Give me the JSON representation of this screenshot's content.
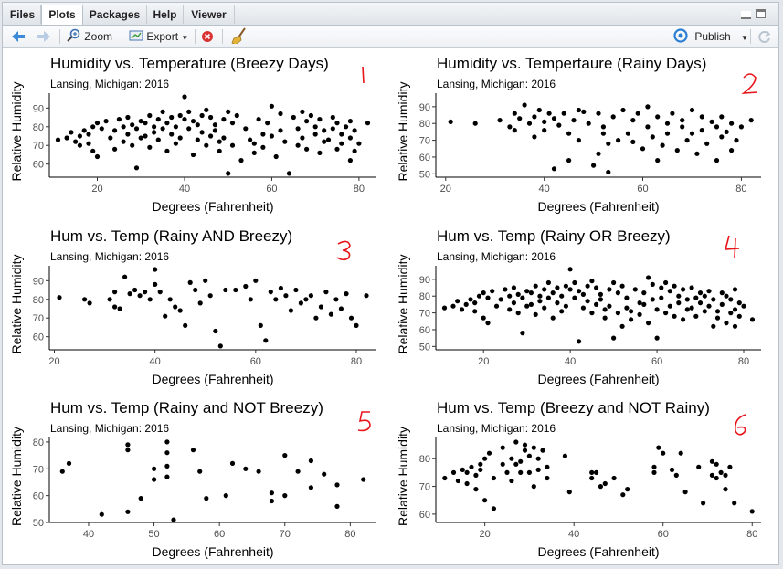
{
  "tabs": [
    "Files",
    "Plots",
    "Packages",
    "Help",
    "Viewer"
  ],
  "active_tab": "Plots",
  "toolbar": {
    "zoom": "Zoom",
    "export": "Export",
    "publish": "Publish"
  },
  "colors": {
    "accent": "#2a7fd4",
    "annotation": "#e8151b",
    "point": "#000000"
  },
  "icons": [
    "back-arrow-icon",
    "forward-arrow-icon",
    "zoom-icon",
    "export-icon",
    "remove-plot-icon",
    "broom-icon",
    "publish-icon",
    "refresh-icon"
  ],
  "annotations": [
    "1",
    "2",
    "3",
    "4",
    "5",
    "6"
  ],
  "chart_data": [
    {
      "type": "scatter",
      "title": "Humidity vs. Temperature (Breezy Days)",
      "subtitle": "Lansing, Michigan: 2016",
      "xlabel": "Degrees (Fahrenheit)",
      "ylabel": "Relative Humidity",
      "xlim": [
        9,
        84
      ],
      "ylim": [
        53,
        97
      ],
      "xticks": [
        20,
        40,
        60,
        80
      ],
      "yticks": [
        60,
        70,
        80,
        90
      ],
      "x": [
        11,
        13,
        14,
        15,
        16,
        16,
        17,
        18,
        18,
        19,
        19,
        20,
        20,
        21,
        22,
        23,
        24,
        24,
        25,
        26,
        26,
        27,
        27,
        28,
        28,
        29,
        29,
        30,
        30,
        31,
        31,
        32,
        32,
        33,
        33,
        34,
        34,
        35,
        35,
        36,
        36,
        37,
        37,
        38,
        38,
        39,
        39,
        40,
        40,
        41,
        41,
        42,
        42,
        43,
        43,
        44,
        44,
        45,
        45,
        46,
        46,
        47,
        47,
        48,
        48,
        49,
        49,
        50,
        50,
        51,
        51,
        52,
        53,
        54,
        55,
        56,
        56,
        57,
        58,
        58,
        59,
        60,
        60,
        61,
        62,
        62,
        63,
        64,
        65,
        66,
        66,
        67,
        67,
        68,
        68,
        69,
        70,
        70,
        71,
        71,
        72,
        72,
        73,
        74,
        74,
        75,
        75,
        76,
        76,
        77,
        78,
        78,
        78,
        79,
        79,
        80,
        82
      ],
      "y": [
        73,
        74,
        77,
        72,
        75,
        70,
        78,
        76,
        71,
        80,
        67,
        82,
        64,
        79,
        83,
        74,
        78,
        68,
        84,
        80,
        72,
        85,
        76,
        81,
        70,
        79,
        58,
        83,
        74,
        82,
        75,
        86,
        69,
        80,
        77,
        84,
        73,
        88,
        79,
        67,
        82,
        85,
        76,
        80,
        71,
        86,
        74,
        84,
        96,
        88,
        79,
        83,
        65,
        81,
        73,
        86,
        77,
        89,
        70,
        85,
        75,
        81,
        78,
        72,
        67,
        84,
        74,
        88,
        55,
        82,
        70,
        86,
        62,
        79,
        73,
        71,
        66,
        84,
        76,
        69,
        82,
        75,
        91,
        64,
        87,
        78,
        72,
        55,
        85,
        79,
        70,
        88,
        74,
        83,
        68,
        86,
        76,
        80,
        66,
        84,
        72,
        78,
        73,
        85,
        79,
        68,
        82,
        76,
        71,
        80,
        74,
        83,
        62,
        78,
        67,
        71,
        82
      ]
    },
    {
      "type": "scatter",
      "title": "Humidity vs. Tempertaure (Rainy Days)",
      "subtitle": "Lansing, Michigan: 2016",
      "xlabel": "Degrees (Fahrenheit)",
      "ylabel": "Relative Humidity",
      "xlim": [
        18,
        84
      ],
      "ylim": [
        48,
        97
      ],
      "xticks": [
        20,
        40,
        60,
        80
      ],
      "yticks": [
        50,
        60,
        70,
        80,
        90
      ],
      "x": [
        21,
        26,
        31,
        33,
        34,
        34,
        35,
        36,
        37,
        38,
        38,
        39,
        40,
        40,
        41,
        42,
        42,
        43,
        44,
        45,
        45,
        46,
        47,
        47,
        48,
        49,
        50,
        51,
        51,
        52,
        52,
        53,
        53,
        54,
        55,
        56,
        57,
        58,
        58,
        59,
        60,
        61,
        61,
        62,
        63,
        63,
        64,
        65,
        65,
        66,
        67,
        68,
        68,
        69,
        70,
        70,
        71,
        72,
        72,
        73,
        74,
        75,
        75,
        76,
        76,
        77,
        78,
        78,
        79,
        80,
        82
      ],
      "y": [
        81,
        80,
        82,
        78,
        86,
        76,
        83,
        91,
        80,
        84,
        72,
        88,
        81,
        76,
        86,
        83,
        53,
        79,
        86,
        58,
        74,
        82,
        88,
        70,
        87,
        80,
        55,
        86,
        62,
        74,
        78,
        68,
        51,
        84,
        70,
        88,
        74,
        82,
        69,
        86,
        65,
        78,
        90,
        72,
        84,
        58,
        67,
        80,
        74,
        86,
        64,
        78,
        82,
        70,
        88,
        74,
        62,
        84,
        76,
        68,
        81,
        78,
        58,
        84,
        72,
        75,
        80,
        64,
        70,
        78,
        82
      ]
    },
    {
      "type": "scatter",
      "title": "Hum vs. Temp (Rainy AND Breezy)",
      "subtitle": "Lansing, Michigan: 2016",
      "xlabel": "Degrees (Fahrenheit)",
      "ylabel": "Relative Humidity",
      "xlim": [
        19,
        84
      ],
      "ylim": [
        53,
        97
      ],
      "xticks": [
        20,
        40,
        60,
        80
      ],
      "yticks": [
        60,
        70,
        80,
        90
      ],
      "x": [
        21,
        26,
        27,
        31,
        32,
        32,
        33,
        34,
        35,
        36,
        37,
        38,
        39,
        40,
        40,
        41,
        42,
        43,
        44,
        45,
        46,
        47,
        48,
        49,
        50,
        51,
        52,
        53,
        54,
        56,
        58,
        59,
        60,
        61,
        62,
        63,
        64,
        65,
        66,
        67,
        68,
        69,
        70,
        71,
        72,
        73,
        74,
        75,
        76,
        77,
        78,
        79,
        80,
        82
      ],
      "y": [
        81,
        80,
        78,
        80,
        84,
        76,
        75,
        92,
        83,
        85,
        82,
        84,
        80,
        88,
        96,
        84,
        71,
        80,
        76,
        74,
        66,
        89,
        85,
        78,
        90,
        82,
        63,
        55,
        85,
        85,
        87,
        80,
        90,
        66,
        58,
        84,
        80,
        86,
        82,
        74,
        85,
        78,
        80,
        82,
        70,
        76,
        84,
        72,
        80,
        75,
        83,
        70,
        66,
        82
      ]
    },
    {
      "type": "scatter",
      "title": "Hum vs. Temp (Rainy OR Breezy)",
      "subtitle": "Lansing, Michigan: 2016",
      "xlabel": "Degrees (Fahrenheit)",
      "ylabel": "Relative Humidity",
      "xlim": [
        9,
        84
      ],
      "ylim": [
        48,
        97
      ],
      "xticks": [
        20,
        40,
        60,
        80
      ],
      "yticks": [
        50,
        60,
        70,
        80,
        90
      ],
      "x": [
        11,
        13,
        14,
        15,
        16,
        17,
        18,
        18,
        19,
        20,
        20,
        21,
        21,
        22,
        23,
        24,
        25,
        26,
        26,
        27,
        27,
        28,
        28,
        29,
        29,
        30,
        30,
        31,
        31,
        32,
        32,
        33,
        33,
        34,
        34,
        35,
        35,
        36,
        36,
        37,
        37,
        38,
        38,
        39,
        39,
        40,
        40,
        41,
        41,
        42,
        42,
        43,
        43,
        44,
        44,
        45,
        45,
        46,
        46,
        47,
        47,
        48,
        48,
        49,
        49,
        50,
        50,
        51,
        51,
        52,
        52,
        53,
        53,
        54,
        54,
        55,
        56,
        56,
        57,
        57,
        58,
        58,
        59,
        59,
        60,
        60,
        61,
        61,
        62,
        62,
        63,
        63,
        64,
        64,
        65,
        65,
        66,
        66,
        67,
        67,
        68,
        68,
        69,
        69,
        70,
        70,
        71,
        71,
        72,
        72,
        73,
        73,
        74,
        74,
        75,
        75,
        76,
        76,
        77,
        77,
        78,
        78,
        78,
        79,
        79,
        80,
        82
      ],
      "y": [
        73,
        74,
        77,
        72,
        75,
        78,
        76,
        71,
        80,
        82,
        67,
        79,
        64,
        83,
        74,
        78,
        84,
        80,
        72,
        85,
        76,
        81,
        70,
        79,
        58,
        83,
        74,
        82,
        75,
        86,
        69,
        80,
        77,
        84,
        73,
        88,
        79,
        67,
        82,
        85,
        76,
        80,
        71,
        86,
        74,
        84,
        96,
        88,
        79,
        83,
        53,
        81,
        73,
        86,
        77,
        89,
        70,
        85,
        75,
        81,
        78,
        72,
        67,
        84,
        74,
        88,
        55,
        82,
        70,
        86,
        62,
        79,
        73,
        71,
        66,
        84,
        76,
        69,
        82,
        75,
        91,
        64,
        87,
        78,
        72,
        55,
        85,
        79,
        70,
        88,
        74,
        83,
        68,
        86,
        76,
        80,
        66,
        84,
        72,
        78,
        73,
        85,
        79,
        68,
        82,
        76,
        71,
        80,
        74,
        83,
        62,
        78,
        67,
        71,
        82,
        75,
        80,
        64,
        70,
        78,
        84,
        72,
        62,
        68,
        76,
        74,
        66
      ]
    },
    {
      "type": "scatter",
      "title": "Hum vs. Temp (Rainy and NOT Breezy)",
      "subtitle": "Lansing, Michigan: 2016",
      "xlabel": "Degrees (Fahrenheit)",
      "ylabel": "Relative Humidity",
      "xlim": [
        34,
        84
      ],
      "ylim": [
        50,
        81
      ],
      "xticks": [
        40,
        50,
        60,
        70,
        80
      ],
      "yticks": [
        50,
        60,
        70,
        80
      ],
      "x": [
        36,
        37,
        42,
        46,
        46,
        46,
        48,
        50,
        50,
        52,
        52,
        52,
        52,
        53,
        56,
        57,
        58,
        61,
        62,
        64,
        66,
        68,
        68,
        70,
        70,
        72,
        74,
        74,
        76,
        78,
        78,
        82
      ],
      "y": [
        69,
        72,
        53,
        79,
        77,
        54,
        59,
        66,
        70,
        80,
        76,
        71,
        67,
        51,
        77,
        69,
        59,
        60,
        72,
        70,
        69,
        61,
        58,
        75,
        60,
        69,
        73,
        63,
        68,
        64,
        56,
        66
      ]
    },
    {
      "type": "scatter",
      "title": "Hum vs. Temp (Breezy and NOT Rainy)",
      "subtitle": "Lansing, Michigan: 2016",
      "xlabel": "Degrees (Fahrenheit)",
      "ylabel": "Relative Humidity",
      "xlim": [
        9,
        82
      ],
      "ylim": [
        57,
        87
      ],
      "xticks": [
        20,
        40,
        60,
        80
      ],
      "yticks": [
        60,
        70,
        80
      ],
      "x": [
        11,
        13,
        14,
        15,
        16,
        16,
        17,
        18,
        18,
        19,
        19,
        20,
        20,
        21,
        22,
        22,
        24,
        24,
        25,
        26,
        26,
        27,
        27,
        28,
        28,
        29,
        29,
        30,
        30,
        31,
        31,
        32,
        32,
        33,
        34,
        34,
        38,
        39,
        44,
        44,
        45,
        46,
        47,
        49,
        51,
        52,
        58,
        58,
        59,
        60,
        62,
        63,
        64,
        65,
        68,
        69,
        71,
        71,
        72,
        72,
        73,
        74,
        74,
        75,
        76,
        80
      ],
      "y": [
        73,
        75,
        72,
        76,
        71,
        75,
        77,
        74,
        69,
        78,
        76,
        80,
        65,
        82,
        73,
        62,
        78,
        84,
        75,
        80,
        72,
        78,
        86,
        79,
        75,
        85,
        83,
        75,
        81,
        84,
        70,
        80,
        76,
        83,
        77,
        73,
        81,
        68,
        75,
        73,
        75,
        70,
        71,
        73,
        67,
        69,
        77,
        75,
        84,
        82,
        76,
        74,
        82,
        68,
        77,
        64,
        79,
        74,
        73,
        78,
        75,
        74,
        69,
        77,
        64,
        61
      ]
    }
  ]
}
